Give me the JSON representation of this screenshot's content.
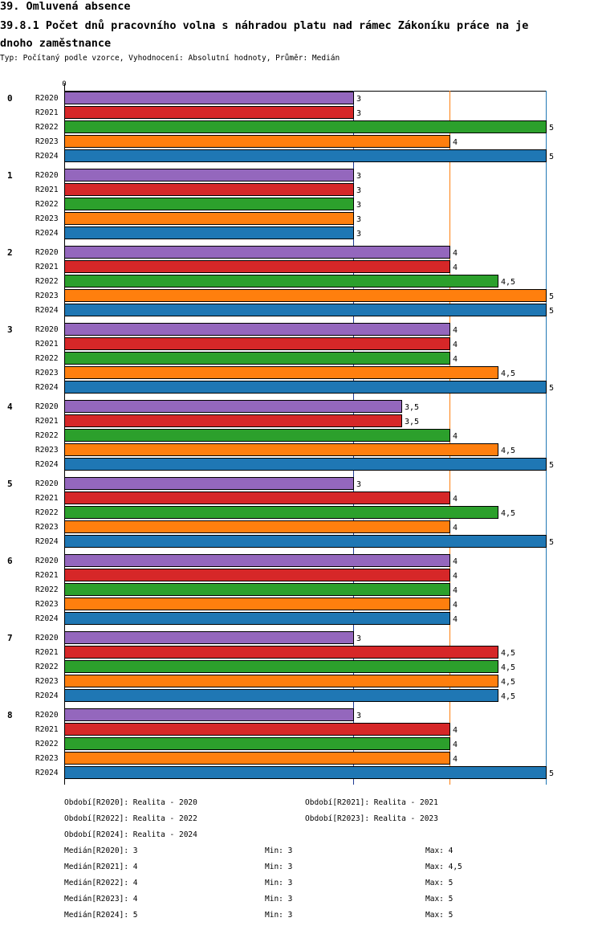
{
  "header": {
    "section_title": "39. Omluvená absence",
    "chart_title": "39.8.1 Počet dnů pracovního volna s náhradou platu nad rámec Zákoníku práce na jednoho zaměstnance",
    "chart_title_line1": "39.8.1 Počet dnů pracovního volna s náhradou platu nad rámec Zákoníku práce na je",
    "chart_title_line2": "dnoho zaměstnance",
    "subtitle": "Typ: Počítaný podle vzorce, Vyhodnocení: Absolutní hodnoty, Průměr: Medián"
  },
  "chart_data": {
    "type": "bar",
    "orientation": "horizontal",
    "axis_zero_label": "0",
    "xlim": [
      0,
      5
    ],
    "reference_lines": [
      {
        "value": 3,
        "color": "#1f3a93"
      },
      {
        "value": 4,
        "color": "#ff7f0e"
      },
      {
        "value": 5,
        "color": "#1f77b4"
      }
    ],
    "series_colors": {
      "R2020": "#9467bd",
      "R2021": "#d62728",
      "R2022": "#2ca02c",
      "R2023": "#ff7f0e",
      "R2024": "#1f77b4"
    },
    "groups": [
      {
        "label": "0",
        "bars": [
          {
            "series": "R2020",
            "value": 3,
            "value_label": "3"
          },
          {
            "series": "R2021",
            "value": 3,
            "value_label": "3"
          },
          {
            "series": "R2022",
            "value": 5,
            "value_label": "5"
          },
          {
            "series": "R2023",
            "value": 4,
            "value_label": "4"
          },
          {
            "series": "R2024",
            "value": 5,
            "value_label": "5"
          }
        ]
      },
      {
        "label": "1",
        "bars": [
          {
            "series": "R2020",
            "value": 3,
            "value_label": "3"
          },
          {
            "series": "R2021",
            "value": 3,
            "value_label": "3"
          },
          {
            "series": "R2022",
            "value": 3,
            "value_label": "3"
          },
          {
            "series": "R2023",
            "value": 3,
            "value_label": "3"
          },
          {
            "series": "R2024",
            "value": 3,
            "value_label": "3"
          }
        ]
      },
      {
        "label": "2",
        "bars": [
          {
            "series": "R2020",
            "value": 4,
            "value_label": "4"
          },
          {
            "series": "R2021",
            "value": 4,
            "value_label": "4"
          },
          {
            "series": "R2022",
            "value": 4.5,
            "value_label": "4,5"
          },
          {
            "series": "R2023",
            "value": 5,
            "value_label": "5"
          },
          {
            "series": "R2024",
            "value": 5,
            "value_label": "5"
          }
        ]
      },
      {
        "label": "3",
        "bars": [
          {
            "series": "R2020",
            "value": 4,
            "value_label": "4"
          },
          {
            "series": "R2021",
            "value": 4,
            "value_label": "4"
          },
          {
            "series": "R2022",
            "value": 4,
            "value_label": "4"
          },
          {
            "series": "R2023",
            "value": 4.5,
            "value_label": "4,5"
          },
          {
            "series": "R2024",
            "value": 5,
            "value_label": "5"
          }
        ]
      },
      {
        "label": "4",
        "bars": [
          {
            "series": "R2020",
            "value": 3.5,
            "value_label": "3,5"
          },
          {
            "series": "R2021",
            "value": 3.5,
            "value_label": "3,5"
          },
          {
            "series": "R2022",
            "value": 4,
            "value_label": "4"
          },
          {
            "series": "R2023",
            "value": 4.5,
            "value_label": "4,5"
          },
          {
            "series": "R2024",
            "value": 5,
            "value_label": "5"
          }
        ]
      },
      {
        "label": "5",
        "bars": [
          {
            "series": "R2020",
            "value": 3,
            "value_label": "3"
          },
          {
            "series": "R2021",
            "value": 4,
            "value_label": "4"
          },
          {
            "series": "R2022",
            "value": 4.5,
            "value_label": "4,5"
          },
          {
            "series": "R2023",
            "value": 4,
            "value_label": "4"
          },
          {
            "series": "R2024",
            "value": 5,
            "value_label": "5"
          }
        ]
      },
      {
        "label": "6",
        "bars": [
          {
            "series": "R2020",
            "value": 4,
            "value_label": "4"
          },
          {
            "series": "R2021",
            "value": 4,
            "value_label": "4"
          },
          {
            "series": "R2022",
            "value": 4,
            "value_label": "4"
          },
          {
            "series": "R2023",
            "value": 4,
            "value_label": "4"
          },
          {
            "series": "R2024",
            "value": 4,
            "value_label": "4"
          }
        ]
      },
      {
        "label": "7",
        "bars": [
          {
            "series": "R2020",
            "value": 3,
            "value_label": "3"
          },
          {
            "series": "R2021",
            "value": 4.5,
            "value_label": "4,5"
          },
          {
            "series": "R2022",
            "value": 4.5,
            "value_label": "4,5"
          },
          {
            "series": "R2023",
            "value": 4.5,
            "value_label": "4,5"
          },
          {
            "series": "R2024",
            "value": 4.5,
            "value_label": "4,5"
          }
        ]
      },
      {
        "label": "8",
        "bars": [
          {
            "series": "R2020",
            "value": 3,
            "value_label": "3"
          },
          {
            "series": "R2021",
            "value": 4,
            "value_label": "4"
          },
          {
            "series": "R2022",
            "value": 4,
            "value_label": "4"
          },
          {
            "series": "R2023",
            "value": 4,
            "value_label": "4"
          },
          {
            "series": "R2024",
            "value": 5,
            "value_label": "5"
          }
        ]
      }
    ]
  },
  "legend": {
    "periods": [
      "Období[R2020]: Realita - 2020",
      "Období[R2021]: Realita - 2021",
      "Období[R2022]: Realita - 2022",
      "Období[R2023]: Realita - 2023",
      "Období[R2024]: Realita - 2024"
    ],
    "stats": [
      {
        "median": "Medián[R2020]: 3",
        "min": "Min: 3",
        "max": "Max: 4"
      },
      {
        "median": "Medián[R2021]: 4",
        "min": "Min: 3",
        "max": "Max: 4,5"
      },
      {
        "median": "Medián[R2022]: 4",
        "min": "Min: 3",
        "max": "Max: 5"
      },
      {
        "median": "Medián[R2023]: 4",
        "min": "Min: 3",
        "max": "Max: 5"
      },
      {
        "median": "Medián[R2024]: 5",
        "min": "Min: 3",
        "max": "Max: 5"
      }
    ]
  }
}
